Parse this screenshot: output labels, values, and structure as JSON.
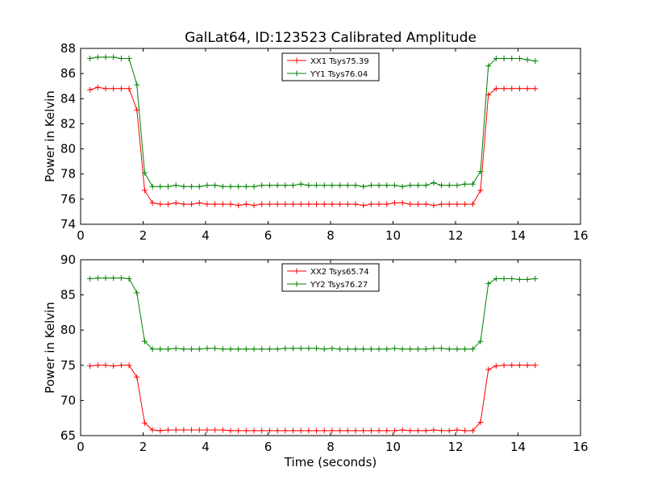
{
  "figure": {
    "title": "GalLat64, ID:123523 Calibrated Amplitude"
  },
  "chart_data": [
    {
      "type": "line",
      "ylabel": "Power in Kelvin",
      "xlabel": "",
      "xlim": [
        0,
        16
      ],
      "ylim": [
        74,
        88
      ],
      "xticks": [
        "0",
        "2",
        "4",
        "6",
        "8",
        "10",
        "12",
        "14",
        "16"
      ],
      "yticks": [
        "74",
        "76",
        "78",
        "80",
        "82",
        "84",
        "86",
        "88"
      ],
      "legend_position": "top-center",
      "x": [
        0.3,
        0.55,
        0.8,
        1.05,
        1.3,
        1.55,
        1.8,
        2.05,
        2.3,
        2.55,
        2.8,
        3.05,
        3.3,
        3.55,
        3.8,
        4.05,
        4.3,
        4.55,
        4.8,
        5.05,
        5.3,
        5.55,
        5.8,
        6.05,
        6.3,
        6.55,
        6.8,
        7.05,
        7.3,
        7.55,
        7.8,
        8.05,
        8.3,
        8.55,
        8.8,
        9.05,
        9.3,
        9.55,
        9.8,
        10.05,
        10.3,
        10.55,
        10.8,
        11.05,
        11.3,
        11.55,
        11.8,
        12.05,
        12.3,
        12.55,
        12.8,
        13.05,
        13.3,
        13.55,
        13.8,
        14.05,
        14.3,
        14.55
      ],
      "series": [
        {
          "name": "XX1 Tsys75.39",
          "color": "#ff0000",
          "values": [
            84.7,
            84.9,
            84.8,
            84.8,
            84.8,
            84.8,
            83.1,
            76.7,
            75.7,
            75.6,
            75.6,
            75.7,
            75.6,
            75.6,
            75.7,
            75.6,
            75.6,
            75.6,
            75.6,
            75.5,
            75.6,
            75.5,
            75.6,
            75.6,
            75.6,
            75.6,
            75.6,
            75.6,
            75.6,
            75.6,
            75.6,
            75.6,
            75.6,
            75.6,
            75.6,
            75.5,
            75.6,
            75.6,
            75.6,
            75.7,
            75.7,
            75.6,
            75.6,
            75.6,
            75.5,
            75.6,
            75.6,
            75.6,
            75.6,
            75.6,
            76.7,
            84.3,
            84.8,
            84.8,
            84.8,
            84.8,
            84.8,
            84.8
          ]
        },
        {
          "name": "YY1 Tsys76.04",
          "color": "#008000",
          "values": [
            87.2,
            87.3,
            87.3,
            87.3,
            87.2,
            87.2,
            85.1,
            78.1,
            77.0,
            77.0,
            77.0,
            77.1,
            77.0,
            77.0,
            77.0,
            77.1,
            77.1,
            77.0,
            77.0,
            77.0,
            77.0,
            77.0,
            77.1,
            77.1,
            77.1,
            77.1,
            77.1,
            77.2,
            77.1,
            77.1,
            77.1,
            77.1,
            77.1,
            77.1,
            77.1,
            77.0,
            77.1,
            77.1,
            77.1,
            77.1,
            77.0,
            77.1,
            77.1,
            77.1,
            77.3,
            77.1,
            77.1,
            77.1,
            77.2,
            77.2,
            78.2,
            86.6,
            87.2,
            87.2,
            87.2,
            87.2,
            87.1,
            87.0
          ]
        }
      ]
    },
    {
      "type": "line",
      "ylabel": "Power in Kelvin",
      "xlabel": "Time (seconds)",
      "xlim": [
        0,
        16
      ],
      "ylim": [
        65,
        90
      ],
      "xticks": [
        "0",
        "2",
        "4",
        "6",
        "8",
        "10",
        "12",
        "14",
        "16"
      ],
      "yticks": [
        "65",
        "70",
        "75",
        "80",
        "85",
        "90"
      ],
      "legend_position": "top-center",
      "x": [
        0.3,
        0.55,
        0.8,
        1.05,
        1.3,
        1.55,
        1.8,
        2.05,
        2.3,
        2.55,
        2.8,
        3.05,
        3.3,
        3.55,
        3.8,
        4.05,
        4.3,
        4.55,
        4.8,
        5.05,
        5.3,
        5.55,
        5.8,
        6.05,
        6.3,
        6.55,
        6.8,
        7.05,
        7.3,
        7.55,
        7.8,
        8.05,
        8.3,
        8.55,
        8.8,
        9.05,
        9.3,
        9.55,
        9.8,
        10.05,
        10.3,
        10.55,
        10.8,
        11.05,
        11.3,
        11.55,
        11.8,
        12.05,
        12.3,
        12.55,
        12.8,
        13.05,
        13.3,
        13.55,
        13.8,
        14.05,
        14.3,
        14.55
      ],
      "series": [
        {
          "name": "XX2 Tsys65.74",
          "color": "#ff0000",
          "values": [
            74.9,
            75.0,
            75.0,
            74.9,
            75.0,
            75.0,
            73.3,
            66.8,
            65.8,
            65.7,
            65.8,
            65.8,
            65.8,
            65.8,
            65.8,
            65.8,
            65.8,
            65.8,
            65.7,
            65.7,
            65.7,
            65.7,
            65.7,
            65.7,
            65.7,
            65.7,
            65.7,
            65.7,
            65.7,
            65.7,
            65.7,
            65.7,
            65.7,
            65.7,
            65.7,
            65.7,
            65.7,
            65.7,
            65.7,
            65.7,
            65.8,
            65.7,
            65.7,
            65.7,
            65.8,
            65.7,
            65.7,
            65.8,
            65.7,
            65.7,
            66.9,
            74.4,
            74.9,
            75.0,
            75.0,
            75.0,
            75.0,
            75.0
          ]
        },
        {
          "name": "YY2 Tsys76.27",
          "color": "#008000",
          "values": [
            87.3,
            87.4,
            87.4,
            87.4,
            87.4,
            87.3,
            85.3,
            78.4,
            77.3,
            77.3,
            77.3,
            77.4,
            77.3,
            77.3,
            77.3,
            77.4,
            77.4,
            77.3,
            77.3,
            77.3,
            77.3,
            77.3,
            77.3,
            77.3,
            77.3,
            77.4,
            77.4,
            77.4,
            77.4,
            77.4,
            77.3,
            77.4,
            77.3,
            77.3,
            77.3,
            77.3,
            77.3,
            77.3,
            77.3,
            77.4,
            77.3,
            77.3,
            77.3,
            77.3,
            77.4,
            77.4,
            77.3,
            77.3,
            77.3,
            77.3,
            78.4,
            86.6,
            87.3,
            87.3,
            87.3,
            87.2,
            87.2,
            87.3
          ]
        }
      ]
    }
  ]
}
